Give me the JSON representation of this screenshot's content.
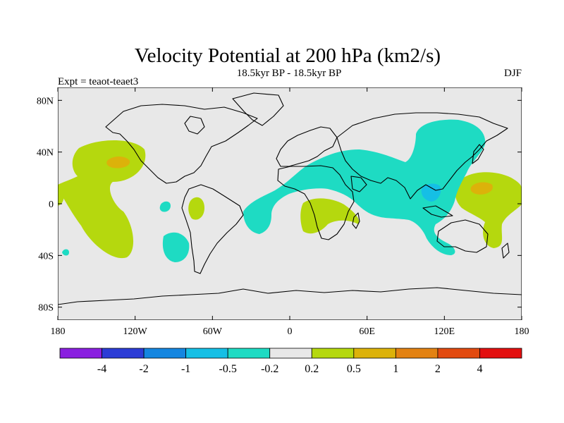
{
  "title": "Velocity Potential at 200 hPa (km2/s)",
  "subtitle": "18.5kyr BP - 18.5kyr BP",
  "left_label": "Expt = teaot-teaet3",
  "right_label": "DJF",
  "y_axis": {
    "ticks": [
      "80N",
      "40N",
      "0",
      "40S",
      "80S"
    ],
    "values": [
      80,
      40,
      0,
      -40,
      -80
    ]
  },
  "x_axis": {
    "ticks": [
      "180",
      "120W",
      "60W",
      "0",
      "60E",
      "120E",
      "180"
    ],
    "values": [
      -180,
      -120,
      -60,
      0,
      60,
      120,
      180
    ]
  },
  "colorbar": {
    "colors": [
      "#8a1fe0",
      "#2c3cd6",
      "#1486e0",
      "#15bfe5",
      "#1edbc3",
      "#e8e8e8",
      "#b5d80e",
      "#dcb20a",
      "#e38212",
      "#e24a0f",
      "#e30f0f"
    ],
    "labels": [
      "-4",
      "-2",
      "-1",
      "-0.5",
      "-0.2",
      "0.2",
      "0.5",
      "1",
      "2",
      "4"
    ]
  },
  "colors": {
    "background": "#e8e8e8",
    "positive_05": "#b5d80e",
    "positive_1": "#dcb20a",
    "negative_02": "#1edbc3",
    "negative_05": "#15bfe5",
    "coast": "#000000"
  }
}
